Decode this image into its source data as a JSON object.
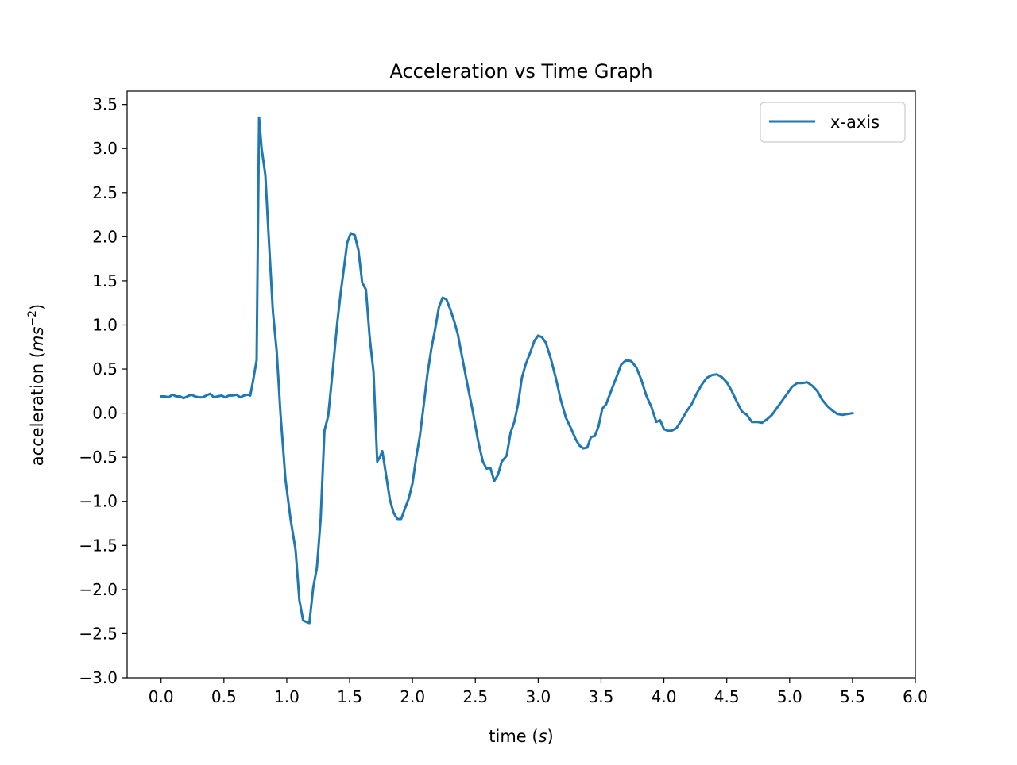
{
  "chart_data": {
    "type": "line",
    "title": "Acceleration vs Time Graph",
    "xlabel": "time (s)",
    "xlabel_parts": {
      "text": "time (",
      "var": "s",
      "close": ")"
    },
    "ylabel": "acceleration (ms^-2)",
    "ylabel_parts": {
      "text": "acceleration (",
      "var": "ms",
      "exp": "−2",
      "close": ")"
    },
    "xlim": [
      -0.27,
      6.0
    ],
    "ylim": [
      -3.0,
      3.65
    ],
    "xticks": [
      0.0,
      0.5,
      1.0,
      1.5,
      2.0,
      2.5,
      3.0,
      3.5,
      4.0,
      4.5,
      5.0,
      5.5,
      6.0
    ],
    "xtick_labels": [
      "0.0",
      "0.5",
      "1.0",
      "1.5",
      "2.0",
      "2.5",
      "3.0",
      "3.5",
      "4.0",
      "4.5",
      "5.0",
      "5.5",
      "6.0"
    ],
    "yticks": [
      -3.0,
      -2.5,
      -2.0,
      -1.5,
      -1.0,
      -0.5,
      0.0,
      0.5,
      1.0,
      1.5,
      2.0,
      2.5,
      3.0,
      3.5
    ],
    "ytick_labels": [
      "−3.0",
      "−2.5",
      "−2.0",
      "−1.5",
      "−1.0",
      "−0.5",
      "0.0",
      "0.5",
      "1.0",
      "1.5",
      "2.0",
      "2.5",
      "3.0",
      "3.5"
    ],
    "grid": false,
    "legend_position": "top-right",
    "series": [
      {
        "name": "x-axis",
        "color": "#1f77b4",
        "points": [
          [
            0.0,
            0.19
          ],
          [
            0.03,
            0.19
          ],
          [
            0.06,
            0.18
          ],
          [
            0.09,
            0.21
          ],
          [
            0.12,
            0.19
          ],
          [
            0.15,
            0.19
          ],
          [
            0.18,
            0.17
          ],
          [
            0.21,
            0.19
          ],
          [
            0.24,
            0.21
          ],
          [
            0.27,
            0.19
          ],
          [
            0.3,
            0.18
          ],
          [
            0.33,
            0.18
          ],
          [
            0.36,
            0.2
          ],
          [
            0.39,
            0.22
          ],
          [
            0.42,
            0.18
          ],
          [
            0.45,
            0.19
          ],
          [
            0.48,
            0.2
          ],
          [
            0.51,
            0.18
          ],
          [
            0.54,
            0.2
          ],
          [
            0.57,
            0.2
          ],
          [
            0.6,
            0.21
          ],
          [
            0.63,
            0.18
          ],
          [
            0.66,
            0.2
          ],
          [
            0.69,
            0.21
          ],
          [
            0.71,
            0.2
          ],
          [
            0.73,
            0.35
          ],
          [
            0.76,
            0.6
          ],
          [
            0.78,
            3.35
          ],
          [
            0.8,
            3.0
          ],
          [
            0.83,
            2.7
          ],
          [
            0.86,
            1.9
          ],
          [
            0.89,
            1.15
          ],
          [
            0.92,
            0.7
          ],
          [
            0.95,
            0.0
          ],
          [
            0.99,
            -0.75
          ],
          [
            1.03,
            -1.2
          ],
          [
            1.07,
            -1.55
          ],
          [
            1.1,
            -2.12
          ],
          [
            1.13,
            -2.35
          ],
          [
            1.16,
            -2.37
          ],
          [
            1.18,
            -2.38
          ],
          [
            1.21,
            -1.98
          ],
          [
            1.24,
            -1.75
          ],
          [
            1.27,
            -1.2
          ],
          [
            1.3,
            -0.2
          ],
          [
            1.33,
            -0.03
          ],
          [
            1.37,
            0.55
          ],
          [
            1.4,
            1.0
          ],
          [
            1.43,
            1.38
          ],
          [
            1.46,
            1.7
          ],
          [
            1.48,
            1.93
          ],
          [
            1.51,
            2.04
          ],
          [
            1.54,
            2.02
          ],
          [
            1.57,
            1.85
          ],
          [
            1.6,
            1.48
          ],
          [
            1.63,
            1.4
          ],
          [
            1.66,
            0.85
          ],
          [
            1.69,
            0.47
          ],
          [
            1.72,
            -0.55
          ],
          [
            1.74,
            -0.5
          ],
          [
            1.76,
            -0.43
          ],
          [
            1.79,
            -0.7
          ],
          [
            1.82,
            -0.98
          ],
          [
            1.85,
            -1.13
          ],
          [
            1.88,
            -1.2
          ],
          [
            1.91,
            -1.2
          ],
          [
            1.94,
            -1.08
          ],
          [
            1.97,
            -0.97
          ],
          [
            2.0,
            -0.8
          ],
          [
            2.03,
            -0.5
          ],
          [
            2.06,
            -0.25
          ],
          [
            2.09,
            0.1
          ],
          [
            2.12,
            0.45
          ],
          [
            2.15,
            0.73
          ],
          [
            2.18,
            0.95
          ],
          [
            2.21,
            1.2
          ],
          [
            2.24,
            1.31
          ],
          [
            2.27,
            1.29
          ],
          [
            2.3,
            1.18
          ],
          [
            2.33,
            1.05
          ],
          [
            2.36,
            0.9
          ],
          [
            2.4,
            0.6
          ],
          [
            2.44,
            0.3
          ],
          [
            2.48,
            0.02
          ],
          [
            2.52,
            -0.3
          ],
          [
            2.56,
            -0.55
          ],
          [
            2.59,
            -0.63
          ],
          [
            2.62,
            -0.62
          ],
          [
            2.65,
            -0.77
          ],
          [
            2.68,
            -0.7
          ],
          [
            2.71,
            -0.55
          ],
          [
            2.75,
            -0.48
          ],
          [
            2.78,
            -0.22
          ],
          [
            2.81,
            -0.1
          ],
          [
            2.84,
            0.1
          ],
          [
            2.87,
            0.4
          ],
          [
            2.9,
            0.55
          ],
          [
            2.94,
            0.7
          ],
          [
            2.97,
            0.82
          ],
          [
            3.0,
            0.88
          ],
          [
            3.03,
            0.86
          ],
          [
            3.06,
            0.8
          ],
          [
            3.1,
            0.62
          ],
          [
            3.14,
            0.4
          ],
          [
            3.18,
            0.15
          ],
          [
            3.22,
            -0.05
          ],
          [
            3.26,
            -0.17
          ],
          [
            3.3,
            -0.3
          ],
          [
            3.33,
            -0.37
          ],
          [
            3.36,
            -0.4
          ],
          [
            3.39,
            -0.39
          ],
          [
            3.42,
            -0.27
          ],
          [
            3.45,
            -0.26
          ],
          [
            3.48,
            -0.15
          ],
          [
            3.51,
            0.05
          ],
          [
            3.54,
            0.1
          ],
          [
            3.58,
            0.25
          ],
          [
            3.62,
            0.4
          ],
          [
            3.66,
            0.55
          ],
          [
            3.7,
            0.6
          ],
          [
            3.74,
            0.59
          ],
          [
            3.78,
            0.52
          ],
          [
            3.82,
            0.38
          ],
          [
            3.86,
            0.2
          ],
          [
            3.9,
            0.07
          ],
          [
            3.94,
            -0.1
          ],
          [
            3.97,
            -0.08
          ],
          [
            4.0,
            -0.18
          ],
          [
            4.03,
            -0.2
          ],
          [
            4.06,
            -0.2
          ],
          [
            4.1,
            -0.17
          ],
          [
            4.14,
            -0.08
          ],
          [
            4.18,
            0.02
          ],
          [
            4.22,
            0.1
          ],
          [
            4.26,
            0.22
          ],
          [
            4.3,
            0.32
          ],
          [
            4.34,
            0.4
          ],
          [
            4.38,
            0.43
          ],
          [
            4.42,
            0.44
          ],
          [
            4.46,
            0.41
          ],
          [
            4.5,
            0.35
          ],
          [
            4.54,
            0.25
          ],
          [
            4.58,
            0.13
          ],
          [
            4.62,
            0.02
          ],
          [
            4.66,
            -0.02
          ],
          [
            4.7,
            -0.1
          ],
          [
            4.74,
            -0.1
          ],
          [
            4.78,
            -0.11
          ],
          [
            4.82,
            -0.07
          ],
          [
            4.86,
            -0.02
          ],
          [
            4.9,
            0.06
          ],
          [
            4.94,
            0.14
          ],
          [
            4.98,
            0.22
          ],
          [
            5.02,
            0.3
          ],
          [
            5.06,
            0.34
          ],
          [
            5.1,
            0.34
          ],
          [
            5.14,
            0.35
          ],
          [
            5.18,
            0.31
          ],
          [
            5.22,
            0.25
          ],
          [
            5.26,
            0.15
          ],
          [
            5.3,
            0.08
          ],
          [
            5.34,
            0.03
          ],
          [
            5.38,
            -0.01
          ],
          [
            5.42,
            -0.02
          ],
          [
            5.46,
            -0.01
          ],
          [
            5.5,
            0.0
          ]
        ]
      }
    ]
  }
}
